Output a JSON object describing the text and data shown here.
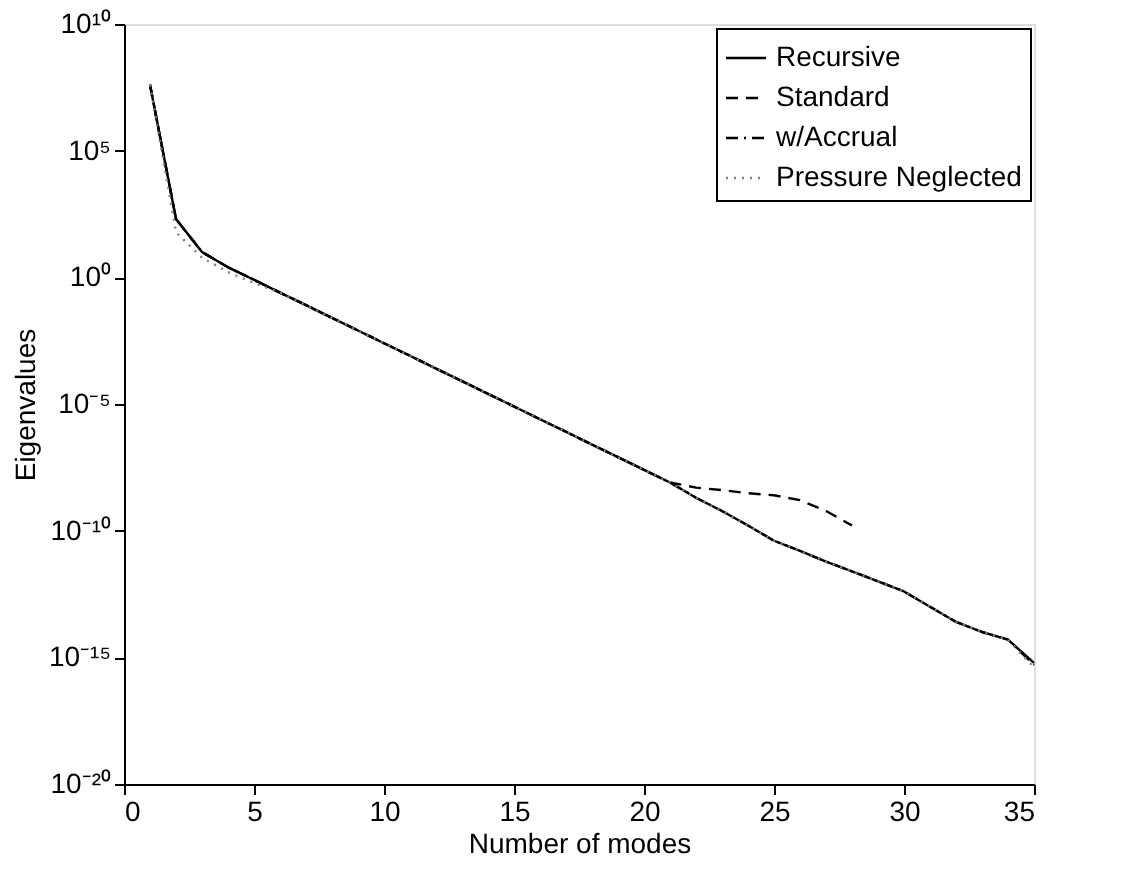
{
  "chart_data": {
    "type": "line",
    "xlabel": "Number of modes",
    "ylabel": "Eigenvalues",
    "log": "y",
    "grid": false,
    "legend": "top right",
    "marker": "none",
    "xlim": [
      0,
      35
    ],
    "xticks": [
      0,
      5,
      10,
      15,
      20,
      25,
      30,
      35
    ],
    "ylim": [
      1e-20,
      10000000000.0
    ],
    "yticks": [
      {
        "value": 1e-20,
        "label": "10⁻²⁰"
      },
      {
        "value": 1e-15,
        "label": "10⁻¹⁵"
      },
      {
        "value": 1e-10,
        "label": "10⁻¹⁰"
      },
      {
        "value": 1e-05,
        "label": "10⁻⁵"
      },
      {
        "value": 1,
        "label": "10⁰"
      },
      {
        "value": 100000.0,
        "label": "10⁵"
      },
      {
        "value": 10000000000.0,
        "label": "10¹⁰"
      }
    ],
    "x": [
      1,
      2,
      3,
      4,
      5,
      6,
      7,
      8,
      9,
      10,
      11,
      12,
      13,
      14,
      15,
      16,
      17,
      18,
      19,
      20,
      21,
      22,
      23,
      24,
      25,
      26,
      27,
      28,
      29,
      30,
      31,
      32,
      33,
      34,
      35
    ],
    "series": [
      {
        "name": "Recursive",
        "color": "#000000",
        "line_style": "solid",
        "values": [
          40000000.0,
          200.0,
          10.0,
          2.5,
          0.8,
          0.25,
          0.08,
          0.025,
          0.008,
          0.0025,
          0.0008,
          0.00025,
          8e-05,
          2.5e-05,
          8e-06,
          2.5e-06,
          8e-07,
          2.5e-07,
          8e-08,
          2.5e-08,
          8e-09,
          2e-09,
          6e-10,
          1.6e-10,
          4e-11,
          1.6e-11,
          6e-12,
          2.5e-12,
          1e-12,
          4e-13,
          1e-13,
          2.5e-14,
          1e-14,
          5e-15,
          6e-16
        ]
      },
      {
        "name": "Standard",
        "color": "#000000",
        "line_style": "dashed",
        "x": [
          1,
          2,
          3,
          4,
          5,
          6,
          7,
          8,
          9,
          10,
          11,
          12,
          13,
          14,
          15,
          16,
          17,
          18,
          19,
          20,
          21,
          22,
          23,
          24,
          25,
          26,
          27,
          28
        ],
        "values": [
          40000000.0,
          200.0,
          10.0,
          2.5,
          0.8,
          0.25,
          0.08,
          0.025,
          0.008,
          0.0025,
          0.0008,
          0.00025,
          8e-05,
          2.5e-05,
          8e-06,
          2.5e-06,
          8e-07,
          2.5e-07,
          8e-08,
          2.5e-08,
          8e-09,
          5e-09,
          4e-09,
          3e-09,
          2.5e-09,
          1.6e-09,
          6e-10,
          1.6e-10
        ]
      },
      {
        "name": "w/Accrual",
        "color": "#000000",
        "line_style": "dashdot",
        "values": [
          40000000.0,
          200.0,
          10.0,
          2.5,
          0.8,
          0.25,
          0.08,
          0.025,
          0.008,
          0.0025,
          0.0008,
          0.00025,
          8e-05,
          2.5e-05,
          8e-06,
          2.5e-06,
          8e-07,
          2.5e-07,
          8e-08,
          2.5e-08,
          8e-09,
          2e-09,
          6e-10,
          1.6e-10,
          4e-11,
          1.6e-11,
          6e-12,
          2.5e-12,
          1e-12,
          4e-13,
          1e-13,
          2.5e-14,
          1e-14,
          5e-15,
          5e-16
        ]
      },
      {
        "name": "Pressure Neglected",
        "color": "#808080",
        "line_style": "dotted",
        "values": [
          40000000.0,
          60.0,
          6,
          1.6,
          0.6,
          0.25,
          0.08,
          0.025,
          0.008,
          0.0025,
          0.0008,
          0.00025,
          8e-05,
          2.5e-05,
          8e-06,
          2.5e-06,
          8e-07,
          2.5e-07,
          8e-08,
          2.5e-08,
          8e-09,
          2e-09,
          6e-10,
          1.6e-10,
          4e-11,
          1.6e-11,
          6e-12,
          2.5e-12,
          1e-12,
          4e-13,
          1e-13,
          2.5e-14,
          1e-14,
          5e-15,
          4e-16
        ]
      }
    ]
  }
}
